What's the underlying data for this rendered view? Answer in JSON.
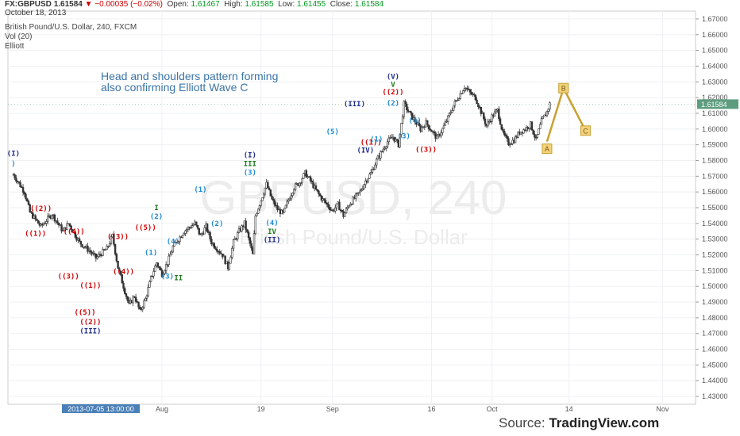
{
  "header": {
    "symbol": "FX:GBPUSD",
    "last": "1.61584",
    "direction_icon": "triangle-down",
    "change": "−0.00035 (−0.02%)",
    "open_label": "Open:",
    "open": "1.61467",
    "high_label": "High:",
    "high": "1.61585",
    "low_label": "Low:",
    "low": "1.61455",
    "close_label": "Close:",
    "close": "1.61584",
    "date": "October 18, 2013"
  },
  "legend": {
    "series": "British Pound/U.S. Dollar, 240, FXCM",
    "volume": "Vol (20)",
    "study": "Elliott"
  },
  "annotation": {
    "line1": "Head and shoulders pattern forming",
    "line2": "also confirming Elliott Wave C"
  },
  "watermark": {
    "symbol": "GBPUSD, 240",
    "name": "British Pound/U.S. Dollar"
  },
  "footer": {
    "source_label": "Source:",
    "source": "TradingView.com"
  },
  "colors": {
    "candle": "#333333",
    "red_label": "#d40000",
    "blue_label": "#1a8ad4",
    "navy_label": "#1c2a8c",
    "green_label": "#1a7a1a",
    "projection": "#c8a030",
    "price_tag": "#5d9d7e",
    "date_tag": "#4a7fb8"
  },
  "chart_data": {
    "type": "candlestick",
    "ylim": [
      1.425,
      1.675
    ],
    "y_ticks": [
      "1.67000",
      "1.66000",
      "1.65000",
      "1.64000",
      "1.63000",
      "1.62000",
      "1.61000",
      "1.60000",
      "1.59000",
      "1.58000",
      "1.57000",
      "1.56000",
      "1.55000",
      "1.54000",
      "1.53000",
      "1.52000",
      "1.51000",
      "1.50000",
      "1.49000",
      "1.48000",
      "1.47000",
      "1.46000",
      "1.45000",
      "1.44000",
      "1.43000"
    ],
    "x_ticks": [
      "Aug",
      "19",
      "Sep",
      "16",
      "Oct",
      "14",
      "Nov"
    ],
    "x_tick_days": [
      27,
      45,
      58,
      76,
      87,
      101,
      118
    ],
    "cursor_date": "2013-07-05 13:00:00",
    "last_price": "1.61584",
    "price_path": [
      [
        0,
        1.571
      ],
      [
        2,
        1.56
      ],
      [
        3,
        1.547
      ],
      [
        5,
        1.538
      ],
      [
        7,
        1.546
      ],
      [
        9,
        1.535
      ],
      [
        10,
        1.54
      ],
      [
        12,
        1.528
      ],
      [
        14,
        1.522
      ],
      [
        15,
        1.518
      ],
      [
        17,
        1.524
      ],
      [
        18,
        1.532
      ],
      [
        19,
        1.512
      ],
      [
        20,
        1.5
      ],
      [
        21,
        1.488
      ],
      [
        22,
        1.494
      ],
      [
        23,
        1.484
      ],
      [
        24,
        1.492
      ],
      [
        25,
        1.505
      ],
      [
        26,
        1.515
      ],
      [
        27,
        1.508
      ],
      [
        28,
        1.515
      ],
      [
        29,
        1.525
      ],
      [
        31,
        1.535
      ],
      [
        33,
        1.54
      ],
      [
        34,
        1.532
      ],
      [
        35,
        1.538
      ],
      [
        36,
        1.528
      ],
      [
        37,
        1.524
      ],
      [
        38,
        1.52
      ],
      [
        39,
        1.512
      ],
      [
        40,
        1.528
      ],
      [
        41,
        1.535
      ],
      [
        42,
        1.54
      ],
      [
        43,
        1.527
      ],
      [
        43.5,
        1.52
      ],
      [
        44,
        1.545
      ],
      [
        45,
        1.555
      ],
      [
        46,
        1.565
      ],
      [
        47,
        1.555
      ],
      [
        48,
        1.549
      ],
      [
        49,
        1.546
      ],
      [
        50,
        1.555
      ],
      [
        51,
        1.563
      ],
      [
        52,
        1.566
      ],
      [
        53,
        1.572
      ],
      [
        54,
        1.567
      ],
      [
        55,
        1.561
      ],
      [
        56,
        1.556
      ],
      [
        57,
        1.552
      ],
      [
        58,
        1.548
      ],
      [
        59,
        1.552
      ],
      [
        60,
        1.545
      ],
      [
        61,
        1.552
      ],
      [
        62,
        1.556
      ],
      [
        63,
        1.56
      ],
      [
        64,
        1.567
      ],
      [
        65,
        1.572
      ],
      [
        66,
        1.58
      ],
      [
        67,
        1.586
      ],
      [
        68,
        1.592
      ],
      [
        69,
        1.595
      ],
      [
        70,
        1.59
      ],
      [
        71,
        1.616
      ],
      [
        72,
        1.61
      ],
      [
        73,
        1.605
      ],
      [
        74,
        1.6
      ],
      [
        75,
        1.604
      ],
      [
        76,
        1.599
      ],
      [
        77,
        1.594
      ],
      [
        78,
        1.6
      ],
      [
        79,
        1.607
      ],
      [
        80,
        1.615
      ],
      [
        81,
        1.621
      ],
      [
        82,
        1.627
      ],
      [
        83,
        1.623
      ],
      [
        84,
        1.62
      ],
      [
        85,
        1.611
      ],
      [
        86,
        1.602
      ],
      [
        87,
        1.608
      ],
      [
        88,
        1.612
      ],
      [
        89,
        1.597
      ],
      [
        90,
        1.591
      ],
      [
        91,
        1.593
      ],
      [
        92,
        1.598
      ],
      [
        93,
        1.6
      ],
      [
        94,
        1.603
      ],
      [
        95,
        1.593
      ],
      [
        96,
        1.605
      ],
      [
        97,
        1.611
      ],
      [
        97.5,
        1.616
      ]
    ],
    "projection": [
      [
        97,
        1.592
      ],
      [
        100,
        1.626
      ],
      [
        104,
        1.599
      ]
    ],
    "projection_labels": [
      {
        "day": 100,
        "price": 1.626,
        "text": "B"
      },
      {
        "day": 104,
        "price": 1.599,
        "text": "C"
      },
      {
        "day": 97,
        "price": 1.5875,
        "text": "A"
      }
    ],
    "wave_labels": [
      {
        "day": 0,
        "price": 1.5845,
        "text": "(I)",
        "color": "navy"
      },
      {
        "day": 0,
        "price": 1.578,
        "text": ")",
        "color": "blue"
      },
      {
        "day": 5,
        "price": 1.5495,
        "text": "((2))",
        "color": "red"
      },
      {
        "day": 4,
        "price": 1.5335,
        "text": "((1))",
        "color": "red"
      },
      {
        "day": 11,
        "price": 1.535,
        "text": "((4))",
        "color": "red"
      },
      {
        "day": 10,
        "price": 1.5065,
        "text": "((3))",
        "color": "red"
      },
      {
        "day": 14,
        "price": 1.5005,
        "text": "((1))",
        "color": "red"
      },
      {
        "day": 13,
        "price": 1.4835,
        "text": "((5))",
        "color": "red"
      },
      {
        "day": 14,
        "price": 1.4775,
        "text": "((2))",
        "color": "red"
      },
      {
        "day": 14,
        "price": 1.4715,
        "text": "(III)",
        "color": "navy"
      },
      {
        "day": 19,
        "price": 1.5315,
        "text": "((3))",
        "color": "red"
      },
      {
        "day": 20,
        "price": 1.5095,
        "text": "((4))",
        "color": "red"
      },
      {
        "day": 24,
        "price": 1.5375,
        "text": "((5))",
        "color": "red"
      },
      {
        "day": 26,
        "price": 1.55,
        "text": "I",
        "color": "green"
      },
      {
        "day": 26,
        "price": 1.5445,
        "text": "(2)",
        "color": "blue"
      },
      {
        "day": 25,
        "price": 1.5215,
        "text": "(1)",
        "color": "blue"
      },
      {
        "day": 29,
        "price": 1.5285,
        "text": "(4)",
        "color": "blue"
      },
      {
        "day": 28,
        "price": 1.5065,
        "text": "(3)",
        "color": "blue"
      },
      {
        "day": 30,
        "price": 1.5055,
        "text": "II",
        "color": "green"
      },
      {
        "day": 34,
        "price": 1.5615,
        "text": "(1)",
        "color": "blue"
      },
      {
        "day": 37,
        "price": 1.54,
        "text": "(2)",
        "color": "blue"
      },
      {
        "day": 43,
        "price": 1.5835,
        "text": "(I)",
        "color": "navy"
      },
      {
        "day": 43,
        "price": 1.578,
        "text": "III",
        "color": "green"
      },
      {
        "day": 43,
        "price": 1.5725,
        "text": "(3)",
        "color": "blue"
      },
      {
        "day": 47,
        "price": 1.5405,
        "text": "(4)",
        "color": "blue"
      },
      {
        "day": 47,
        "price": 1.535,
        "text": "IV",
        "color": "green"
      },
      {
        "day": 47,
        "price": 1.5295,
        "text": "(II)",
        "color": "navy"
      },
      {
        "day": 58,
        "price": 1.5985,
        "text": "(5)",
        "color": "blue"
      },
      {
        "day": 62,
        "price": 1.616,
        "text": "(III)",
        "color": "navy"
      },
      {
        "day": 65,
        "price": 1.5915,
        "text": "((1))",
        "color": "red"
      },
      {
        "day": 66,
        "price": 1.5935,
        "text": "(1)",
        "color": "blue"
      },
      {
        "day": 64,
        "price": 1.5865,
        "text": "(IV)",
        "color": "navy"
      },
      {
        "day": 69,
        "price": 1.6335,
        "text": "(V)",
        "color": "navy"
      },
      {
        "day": 69,
        "price": 1.6285,
        "text": "V",
        "color": "green"
      },
      {
        "day": 69,
        "price": 1.6235,
        "text": "((2))",
        "color": "red"
      },
      {
        "day": 69,
        "price": 1.6165,
        "text": "(2)",
        "color": "blue"
      },
      {
        "day": 73,
        "price": 1.6055,
        "text": "(4)",
        "color": "blue"
      },
      {
        "day": 71,
        "price": 1.5955,
        "text": "(3)",
        "color": "blue"
      },
      {
        "day": 75,
        "price": 1.587,
        "text": "((3))",
        "color": "red"
      }
    ]
  }
}
